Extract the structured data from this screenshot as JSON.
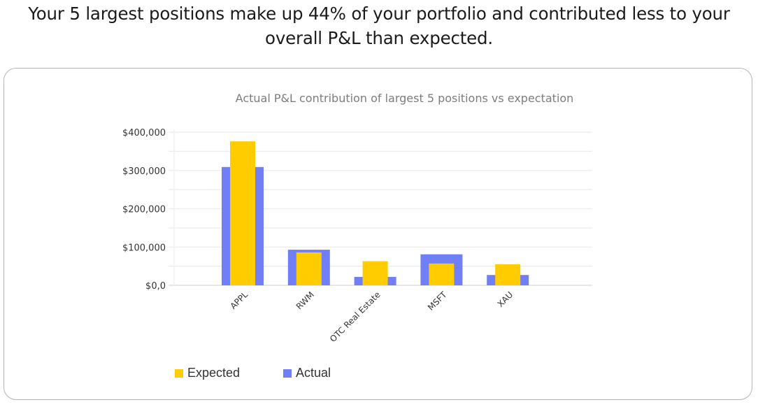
{
  "headline": {
    "line1": "Your 5 largest positions make up 44% of your portfolio and contributed less to your",
    "line2": "overall P&L than expected."
  },
  "chart_data": {
    "type": "bar",
    "title": "Actual P&L contribution of largest 5 positions vs expectation",
    "xlabel": "",
    "ylabel": "",
    "categories": [
      "APPL",
      "RWM",
      "OTC Real Estate",
      "MSFT",
      "XAU"
    ],
    "series": [
      {
        "name": "Actual",
        "color": "#717ff6",
        "values": [
          309000,
          93000,
          22000,
          81000,
          27000
        ]
      },
      {
        "name": "Expected",
        "color": "#ffcc00",
        "values": [
          376000,
          86000,
          63000,
          57000,
          55000
        ]
      }
    ],
    "ylim": [
      0,
      400000
    ],
    "yticks": [
      {
        "value": 0,
        "label": "$0,0"
      },
      {
        "value": 100000,
        "label": "$100,000"
      },
      {
        "value": 200000,
        "label": "$200,000"
      },
      {
        "value": 300000,
        "label": "$300,000"
      },
      {
        "value": 400000,
        "label": "$400,000"
      }
    ],
    "minor_gridlines_every": 50000,
    "grid": true,
    "bar_style": "overlapping (Expected drawn narrower in front of Actual)",
    "legend": {
      "placement": "bottom-left",
      "items": [
        {
          "label": "Expected",
          "color": "#ffcc00"
        },
        {
          "label": "Actual",
          "color": "#717ff6"
        }
      ]
    }
  }
}
